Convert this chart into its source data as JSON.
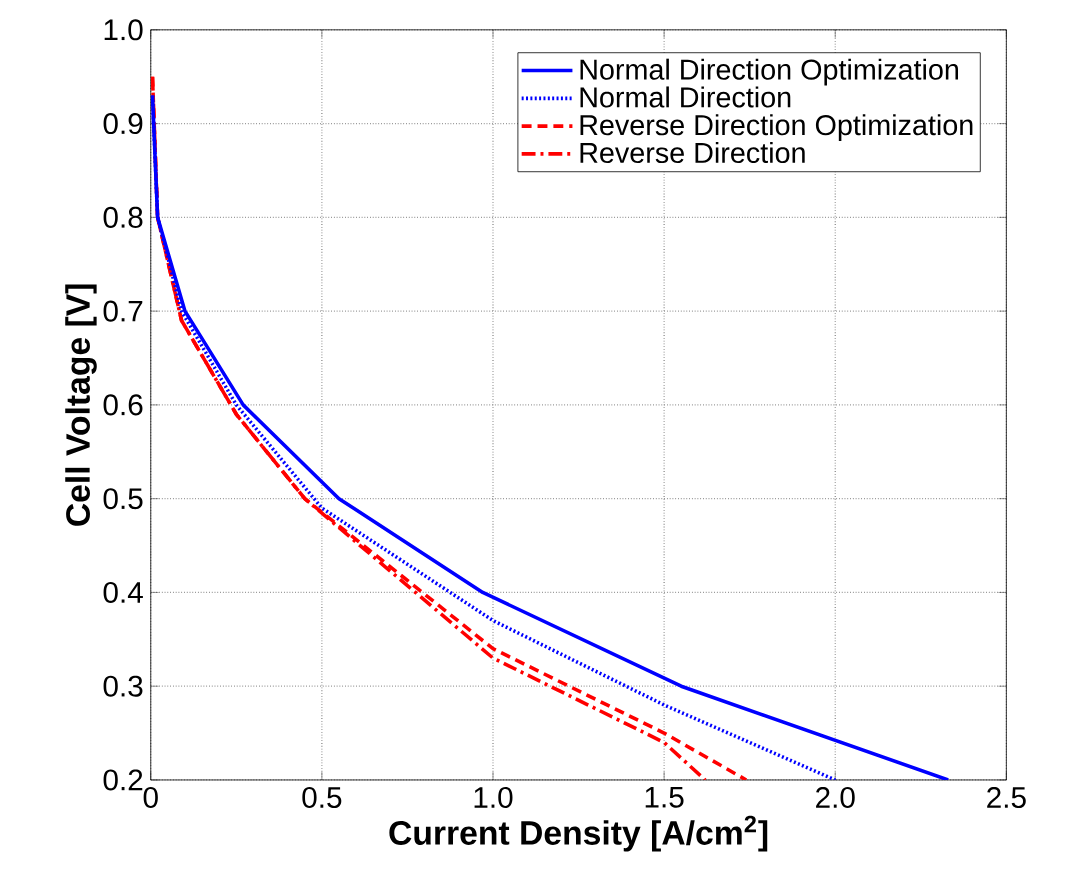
{
  "chart_data": {
    "type": "line",
    "xlabel": "Current Density [A/cm$^{2}$]",
    "ylabel": "Cell Voltage [V]",
    "xlim": [
      0,
      2.5
    ],
    "ylim": [
      0.2,
      1.0
    ],
    "xticks": [
      0,
      {
        "value": 0.5,
        "label": "0.5"
      },
      {
        "value": 1,
        "label": "1.0"
      },
      {
        "value": 1.5,
        "label": "1.5"
      },
      {
        "value": 2,
        "label": "2.0"
      },
      {
        "value": 2.5,
        "label": "2.5"
      }
    ],
    "yticks": [
      0.2,
      0.3,
      0.4,
      0.5,
      0.6,
      0.7,
      0.8,
      0.9,
      {
        "value": 1,
        "label": "1.0"
      }
    ],
    "grid": true,
    "legend": "top right",
    "series": [
      {
        "name": "Normal Direction Optimization",
        "color": "#0000ff",
        "line_style": "solid",
        "x": [
          0.005,
          0.02,
          0.1,
          0.27,
          0.55,
          0.97,
          1.55,
          2.33
        ],
        "values": [
          0.93,
          0.8,
          0.7,
          0.6,
          0.5,
          0.4,
          0.3,
          0.2
        ]
      },
      {
        "name": "Normal Direction",
        "color": "#0000ff",
        "line_style": "dotted",
        "x": [
          0.005,
          0.02,
          0.09,
          0.25,
          0.5,
          1.0,
          1.5,
          2.0
        ],
        "values": [
          0.93,
          0.8,
          0.7,
          0.6,
          0.49,
          0.37,
          0.28,
          0.2
        ]
      },
      {
        "name": "Reverse Direction Optimization",
        "color": "#ff0000",
        "line_style": "dashed",
        "x": [
          0.005,
          0.02,
          0.09,
          0.25,
          0.45,
          1.0,
          1.5,
          1.74
        ],
        "values": [
          0.95,
          0.8,
          0.69,
          0.59,
          0.5,
          0.34,
          0.25,
          0.2
        ]
      },
      {
        "name": "Reverse Direction",
        "color": "#ff0000",
        "line_style": "dashdot",
        "x": [
          0.005,
          0.02,
          0.09,
          0.25,
          0.45,
          1.0,
          1.5,
          1.62
        ],
        "values": [
          0.95,
          0.8,
          0.69,
          0.59,
          0.5,
          0.33,
          0.24,
          0.2
        ]
      }
    ]
  }
}
